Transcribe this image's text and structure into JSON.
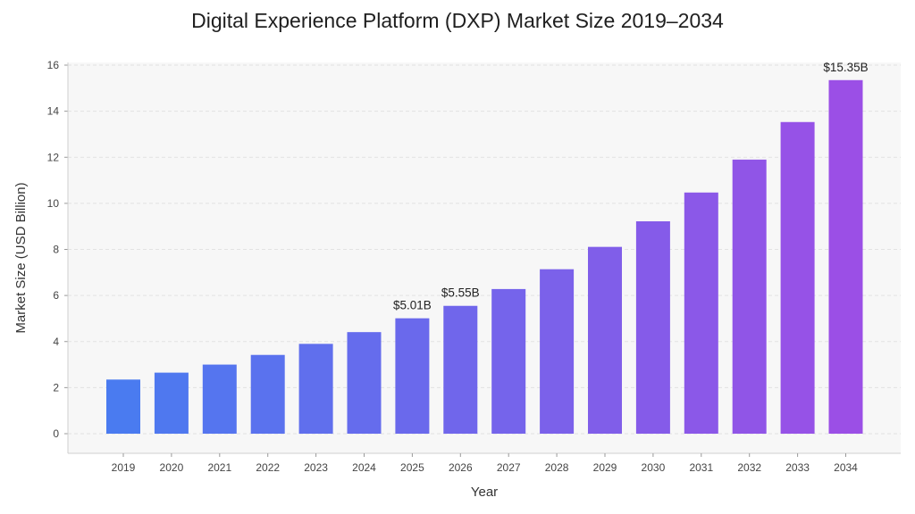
{
  "chart_data": {
    "type": "bar",
    "title": "Digital Experience Platform (DXP) Market Size 2019–2034",
    "xlabel": "Year",
    "ylabel": "Market Size (USD Billion)",
    "ylim": [
      0,
      16
    ],
    "yticks": [
      0,
      2,
      4,
      6,
      8,
      10,
      12,
      14,
      16
    ],
    "grid": true,
    "categories": [
      "2019",
      "2020",
      "2021",
      "2022",
      "2023",
      "2024",
      "2025",
      "2026",
      "2027",
      "2028",
      "2029",
      "2030",
      "2031",
      "2032",
      "2033",
      "2034"
    ],
    "values": [
      2.35,
      2.65,
      3.0,
      3.42,
      3.9,
      4.41,
      5.01,
      5.55,
      6.28,
      7.14,
      8.11,
      9.22,
      10.47,
      11.9,
      13.53,
      15.35
    ],
    "data_labels": {
      "2025": "$5.01B",
      "2026": "$5.55B",
      "2034": "$15.35B"
    },
    "colors": {
      "bar_start": "#4a7bf0",
      "bar_end": "#9b4fe6",
      "plot_bg": "#f7f7f7",
      "grid": "#e2e2e2"
    }
  }
}
